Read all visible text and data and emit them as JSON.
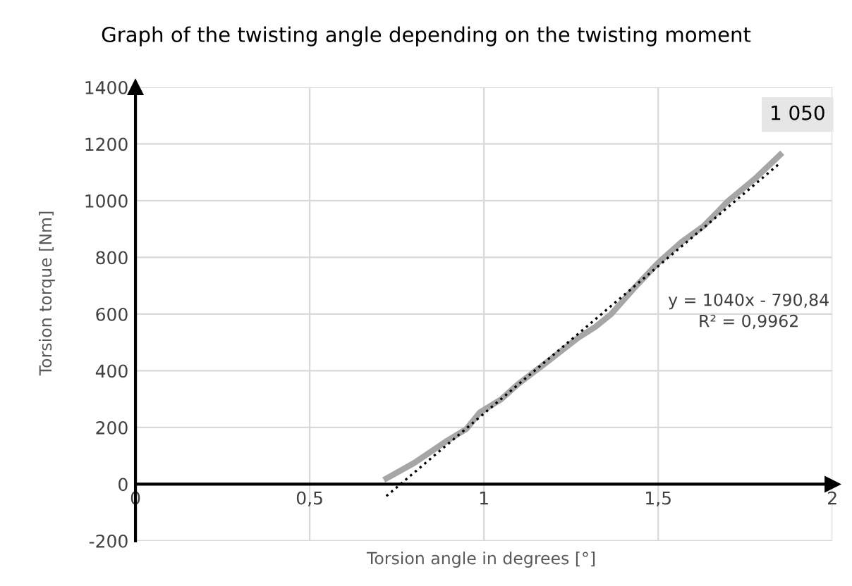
{
  "chart_data": {
    "type": "line",
    "title": "Graph of the twisting angle depending on the twisting moment",
    "xlabel": "Torsion angle in degrees [°]",
    "ylabel": "Torsion torque [Nm]",
    "series": [
      {
        "color": "#a6a6a6",
        "x": [
          0.72,
          0.8,
          0.895,
          0.95,
          0.988,
          1.05,
          1.097,
          1.18,
          1.27,
          1.32,
          1.365,
          1.43,
          1.5,
          1.567,
          1.63,
          1.7,
          1.78,
          1.85
        ],
        "values": [
          20,
          75,
          154,
          195,
          253,
          300,
          352,
          430,
          516,
          555,
          600,
          690,
          781,
          854,
          910,
          998,
          1080,
          1162
        ]
      },
      {
        "type": "line",
        "color": "#000000",
        "line_style": "dotted",
        "x": [
          0.72,
          1.85
        ],
        "values": [
          -42,
          1133
        ]
      }
    ],
    "annotations": [
      "1 050",
      "y = 1040x - 790,84\nR² = 0,9962"
    ],
    "xlim": [
      0,
      2
    ],
    "ylim": [
      -200,
      1400
    ],
    "xticks": [
      0,
      {
        "value": 0.5,
        "label": "0,5"
      },
      1,
      {
        "value": 1.5,
        "label": "1,5"
      },
      2
    ],
    "yticks": [
      -200,
      0,
      200,
      400,
      600,
      800,
      1000,
      1200,
      1400
    ],
    "grid": true,
    "legend": false
  }
}
